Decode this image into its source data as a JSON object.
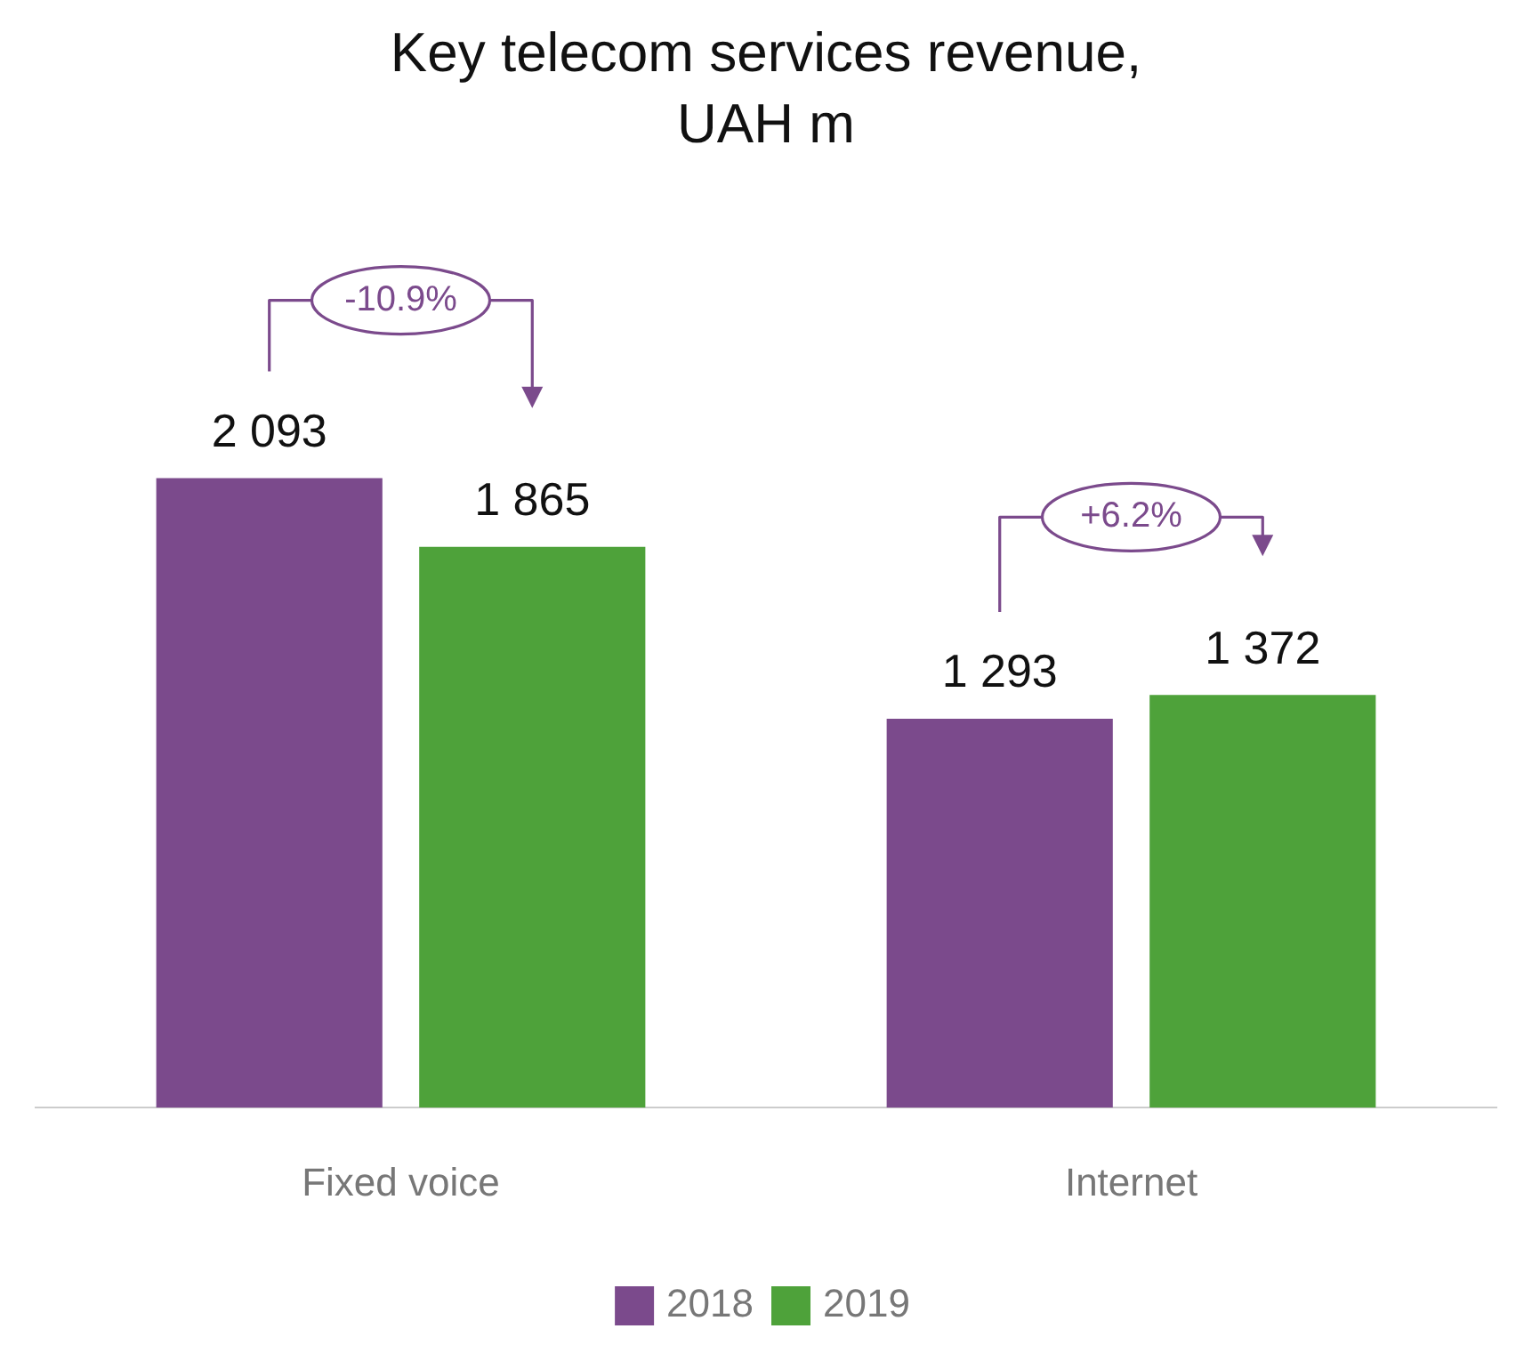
{
  "chart_data": {
    "type": "bar",
    "title": "Key telecom services revenue, UAH m",
    "categories": [
      "Fixed voice",
      "Internet"
    ],
    "series": [
      {
        "name": "2018",
        "color": "#7b4a8c",
        "values": [
          2093,
          1293
        ],
        "value_labels": [
          "2 093",
          "1 293"
        ]
      },
      {
        "name": "2019",
        "color": "#4ea23a",
        "values": [
          1865,
          1372
        ],
        "value_labels": [
          "1 865",
          "1 372"
        ]
      }
    ],
    "tick_labels": "x",
    "grid": false,
    "legend": "bottom",
    "annotations": [
      "-10.9%",
      "+6.2%"
    ]
  }
}
